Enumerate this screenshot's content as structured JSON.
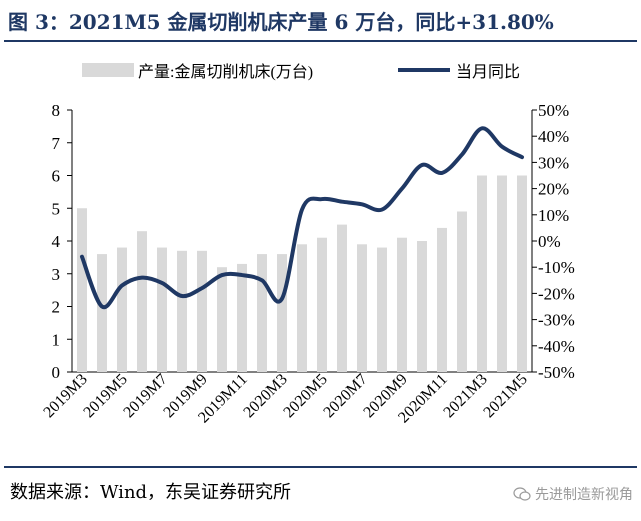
{
  "title": "图 3：2021M5 金属切削机床产量 6 万台，同比+31.80%",
  "source": "数据来源：Wind，东吴证券研究所",
  "watermark": "先进制造新视角",
  "colors": {
    "bar": "#d9d9d9",
    "line": "#1f3864",
    "title": "#1f3864"
  },
  "chart_data": {
    "type": "bar+line",
    "categories": [
      "2019M3",
      "2019M4",
      "2019M5",
      "2019M6",
      "2019M7",
      "2019M8",
      "2019M9",
      "2019M10",
      "2019M11",
      "2019M12",
      "2020M3",
      "2020M4",
      "2020M5",
      "2020M6",
      "2020M7",
      "2020M8",
      "2020M9",
      "2020M10",
      "2020M11",
      "2020M12",
      "2021M3",
      "2021M4",
      "2021M5"
    ],
    "x_tick_labels": [
      "2019M3",
      "",
      "2019M5",
      "",
      "2019M7",
      "",
      "2019M9",
      "",
      "2019M11",
      "",
      "2020M3",
      "",
      "2020M5",
      "",
      "2020M7",
      "",
      "2020M9",
      "",
      "2020M11",
      "",
      "2021M3",
      "",
      "2021M5"
    ],
    "series": [
      {
        "name": "产量:金属切削机床(万台)",
        "type": "bar",
        "axis": "left",
        "values": [
          5.0,
          3.6,
          3.8,
          4.3,
          3.8,
          3.7,
          3.7,
          3.2,
          3.3,
          3.6,
          3.6,
          3.9,
          4.1,
          4.5,
          3.9,
          3.8,
          4.1,
          4.0,
          4.4,
          4.9,
          6.0,
          6.0,
          6.0
        ]
      },
      {
        "name": "当月同比",
        "type": "line",
        "axis": "right",
        "unit": "%",
        "values": [
          -6,
          -25,
          -17,
          -14,
          -16,
          -21,
          -18,
          -13,
          -13,
          -15,
          -22,
          12,
          16,
          15,
          14,
          12,
          20,
          29,
          26,
          33,
          43,
          36,
          32
        ]
      }
    ],
    "yleft": {
      "min": 0,
      "max": 8,
      "ticks": [
        "0",
        "1",
        "2",
        "3",
        "4",
        "5",
        "6",
        "7",
        "8"
      ]
    },
    "yright": {
      "min": -50,
      "max": 50,
      "ticks": [
        "-50%",
        "-40%",
        "-30%",
        "-20%",
        "-10%",
        "0%",
        "10%",
        "20%",
        "30%",
        "40%",
        "50%"
      ]
    },
    "legend_position": "top",
    "grid": false
  }
}
